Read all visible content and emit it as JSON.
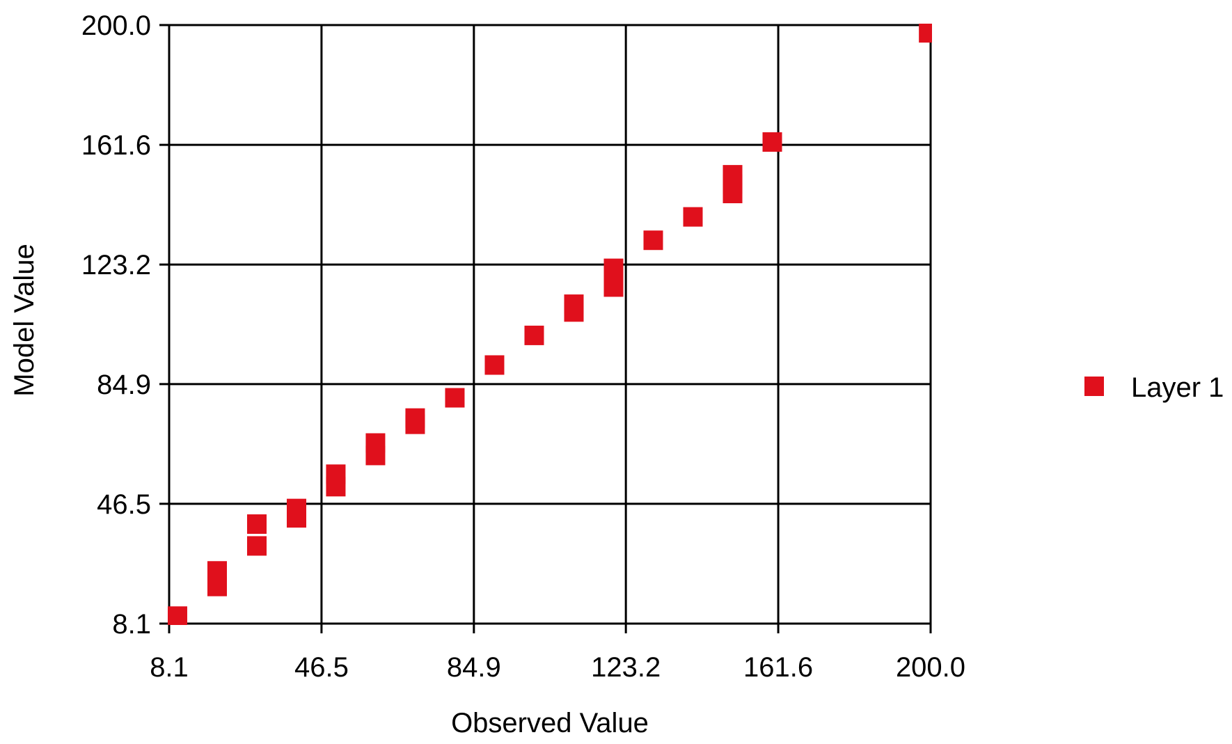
{
  "chart_data": {
    "type": "scatter",
    "title": "",
    "xlabel": "Observed Value",
    "ylabel": "Model Value",
    "xlim": [
      8.1,
      200.0
    ],
    "ylim": [
      8.1,
      200.0
    ],
    "x_ticks": [
      "8.1",
      "46.5",
      "84.9",
      "123.2",
      "161.6",
      "200.0"
    ],
    "y_ticks": [
      "8.1",
      "46.5",
      "84.9",
      "123.2",
      "161.6",
      "200.0"
    ],
    "grid": true,
    "legend_position": "right",
    "series": [
      {
        "name": "Layer 1",
        "color": "#e0101c",
        "marker": "square",
        "points": [
          {
            "x": 10.2,
            "y": 10.5
          },
          {
            "x": 20.2,
            "y": 20.0
          },
          {
            "x": 20.2,
            "y": 25.0
          },
          {
            "x": 30.2,
            "y": 33.0
          },
          {
            "x": 30.2,
            "y": 40.0
          },
          {
            "x": 40.2,
            "y": 42.0
          },
          {
            "x": 40.2,
            "y": 45.0
          },
          {
            "x": 50.1,
            "y": 52.0
          },
          {
            "x": 50.1,
            "y": 56.0
          },
          {
            "x": 60.1,
            "y": 62.0
          },
          {
            "x": 60.1,
            "y": 66.0
          },
          {
            "x": 70.1,
            "y": 72.0
          },
          {
            "x": 70.1,
            "y": 74.0
          },
          {
            "x": 80.1,
            "y": 80.5
          },
          {
            "x": 90.1,
            "y": 91.0
          },
          {
            "x": 100.1,
            "y": 100.5
          },
          {
            "x": 110.1,
            "y": 108.0
          },
          {
            "x": 110.1,
            "y": 110.5
          },
          {
            "x": 120.1,
            "y": 116.0
          },
          {
            "x": 120.1,
            "y": 119.0
          },
          {
            "x": 120.1,
            "y": 122.0
          },
          {
            "x": 130.1,
            "y": 131.0
          },
          {
            "x": 140.1,
            "y": 138.5
          },
          {
            "x": 150.1,
            "y": 146.0
          },
          {
            "x": 150.1,
            "y": 149.0
          },
          {
            "x": 150.1,
            "y": 152.0
          },
          {
            "x": 160.1,
            "y": 162.5
          },
          {
            "x": 199.5,
            "y": 197.5
          }
        ]
      }
    ]
  }
}
